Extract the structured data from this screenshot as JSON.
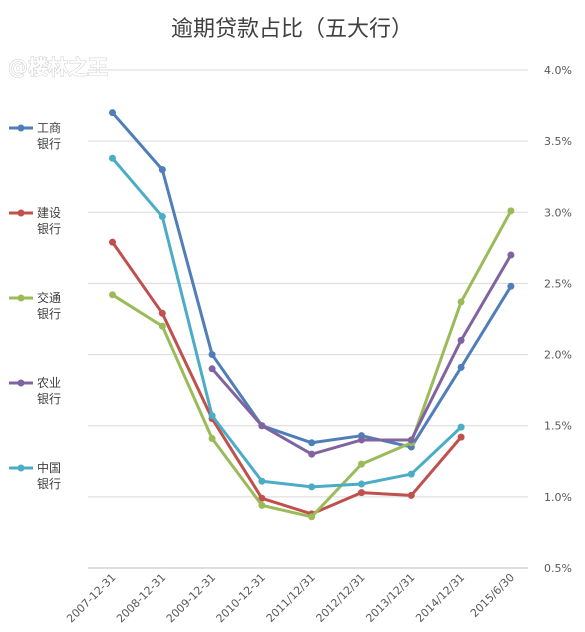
{
  "watermark": "@楼林之王",
  "chart_data": {
    "type": "line",
    "title": "逾期贷款占比（五大行）",
    "categories": [
      "2007-12-31",
      "2008-12-31",
      "2009-12-31",
      "2010-12-31",
      "2011/12/31",
      "2012/12/31",
      "2013/12/31",
      "2014/12/31",
      "2015/6/30"
    ],
    "y_ticks": [
      "0.5%",
      "1.0%",
      "1.5%",
      "2.0%",
      "2.5%",
      "3.0%",
      "3.5%",
      "4.0%"
    ],
    "ylim": [
      0.5,
      4.0
    ],
    "y_axis_position": "right",
    "grid": true,
    "legend_position": "left",
    "series": [
      {
        "name": "工商银行",
        "name_lines": [
          "工商",
          "银行"
        ],
        "color": "#4f7eb8",
        "values": [
          3.7,
          3.3,
          2.0,
          1.5,
          1.38,
          1.43,
          1.35,
          1.91,
          2.48
        ]
      },
      {
        "name": "建设银行",
        "name_lines": [
          "建设",
          "银行"
        ],
        "color": "#c0504d",
        "values": [
          2.79,
          2.29,
          1.55,
          0.99,
          0.88,
          1.03,
          1.01,
          1.42,
          null
        ]
      },
      {
        "name": "交通银行",
        "name_lines": [
          "交通",
          "银行"
        ],
        "color": "#9bbb59",
        "values": [
          2.42,
          2.2,
          1.41,
          0.94,
          0.86,
          1.23,
          1.38,
          2.37,
          3.01
        ]
      },
      {
        "name": "农业银行",
        "name_lines": [
          "农业",
          "银行"
        ],
        "color": "#8064a2",
        "values": [
          null,
          null,
          1.9,
          1.5,
          1.3,
          1.4,
          1.4,
          2.1,
          2.7
        ]
      },
      {
        "name": "中国银行",
        "name_lines": [
          "中国",
          "银行"
        ],
        "color": "#4bacc6",
        "values": [
          3.38,
          2.97,
          1.57,
          1.11,
          1.07,
          1.09,
          1.16,
          1.49,
          null
        ]
      }
    ]
  }
}
